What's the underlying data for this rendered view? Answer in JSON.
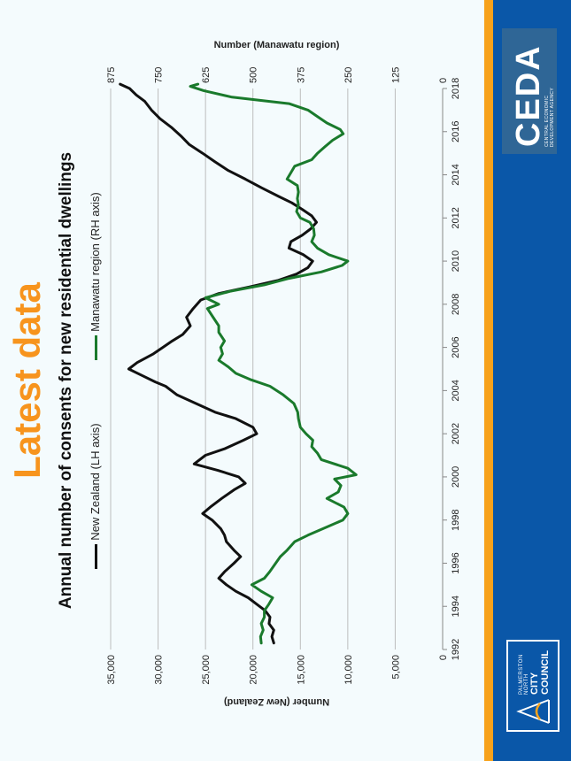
{
  "heading": "Latest data",
  "chart_data": {
    "type": "line",
    "title": "Annual number of consents for new residential dwellings",
    "xlabel": "",
    "ylabel": "Number (New Zealand)",
    "y2label": "Number (Manawatu region)",
    "xlim": [
      1992,
      2018
    ],
    "ylim": [
      0,
      35000
    ],
    "y2lim": [
      0,
      875
    ],
    "x_ticks": [
      "1992",
      "1994",
      "1996",
      "1998",
      "2000",
      "2002",
      "2004",
      "2006",
      "2008",
      "2010",
      "2012",
      "2014",
      "2016",
      "2018"
    ],
    "y_ticks": [
      "0",
      "5,000",
      "10,000",
      "15,000",
      "20,000",
      "25,000",
      "30,000",
      "35,000"
    ],
    "y2_ticks": [
      "0",
      "125",
      "250",
      "375",
      "500",
      "625",
      "750",
      "875"
    ],
    "grid": true,
    "legend_position": "top",
    "series": [
      {
        "name": "New Zealand (LH axis)",
        "axis": "left",
        "color": "#111111",
        "points": [
          [
            1992.3,
            17800
          ],
          [
            1992.6,
            18000
          ],
          [
            1992.9,
            17800
          ],
          [
            1993.2,
            18300
          ],
          [
            1993.5,
            18200
          ],
          [
            1993.8,
            18700
          ],
          [
            1994.1,
            19600
          ],
          [
            1994.4,
            20500
          ],
          [
            1994.7,
            21800
          ],
          [
            1995.0,
            22800
          ],
          [
            1995.3,
            23600
          ],
          [
            1995.6,
            23000
          ],
          [
            1996.0,
            22000
          ],
          [
            1996.3,
            21300
          ],
          [
            1996.6,
            22000
          ],
          [
            1997.0,
            22800
          ],
          [
            1997.3,
            23000
          ],
          [
            1997.6,
            23400
          ],
          [
            1998.0,
            24300
          ],
          [
            1998.3,
            25300
          ],
          [
            1998.6,
            24500
          ],
          [
            1999.0,
            23300
          ],
          [
            1999.4,
            22000
          ],
          [
            1999.7,
            20800
          ],
          [
            2000.0,
            21500
          ],
          [
            2000.3,
            23700
          ],
          [
            2000.6,
            26200
          ],
          [
            2001.0,
            25000
          ],
          [
            2001.3,
            23000
          ],
          [
            2001.7,
            21000
          ],
          [
            2002.0,
            19600
          ],
          [
            2002.3,
            20000
          ],
          [
            2002.7,
            21800
          ],
          [
            2003.0,
            24000
          ],
          [
            2003.4,
            26000
          ],
          [
            2003.8,
            28000
          ],
          [
            2004.2,
            29200
          ],
          [
            2004.4,
            30300
          ],
          [
            2004.7,
            31700
          ],
          [
            2005.0,
            33100
          ],
          [
            2005.3,
            32200
          ],
          [
            2005.7,
            30500
          ],
          [
            2006.0,
            29500
          ],
          [
            2006.3,
            28500
          ],
          [
            2006.6,
            27400
          ],
          [
            2007.0,
            26600
          ],
          [
            2007.4,
            27000
          ],
          [
            2007.8,
            26300
          ],
          [
            2008.2,
            25500
          ],
          [
            2008.5,
            23600
          ],
          [
            2008.8,
            20400
          ],
          [
            2009.1,
            17400
          ],
          [
            2009.4,
            15400
          ],
          [
            2009.7,
            14200
          ],
          [
            2010.0,
            13700
          ],
          [
            2010.3,
            14700
          ],
          [
            2010.6,
            16200
          ],
          [
            2010.9,
            16000
          ],
          [
            2011.2,
            14800
          ],
          [
            2011.5,
            13900
          ],
          [
            2011.8,
            13300
          ],
          [
            2012.1,
            13800
          ],
          [
            2012.4,
            14800
          ],
          [
            2012.7,
            15900
          ],
          [
            2013.0,
            17300
          ],
          [
            2013.4,
            19100
          ],
          [
            2013.8,
            20800
          ],
          [
            2014.2,
            22600
          ],
          [
            2014.6,
            24000
          ],
          [
            2015.0,
            25300
          ],
          [
            2015.4,
            26700
          ],
          [
            2015.8,
            27600
          ],
          [
            2016.2,
            28600
          ],
          [
            2016.6,
            29800
          ],
          [
            2017.0,
            30700
          ],
          [
            2017.4,
            31400
          ],
          [
            2017.7,
            32300
          ],
          [
            2018.0,
            33000
          ],
          [
            2018.2,
            34000
          ]
        ]
      },
      {
        "name": "Manawatu region (RH axis)",
        "axis": "right",
        "color": "#1a7a2c",
        "points": [
          [
            1992.3,
            478
          ],
          [
            1992.6,
            480
          ],
          [
            1992.9,
            473
          ],
          [
            1993.2,
            478
          ],
          [
            1993.5,
            470
          ],
          [
            1993.8,
            470
          ],
          [
            1994.1,
            458
          ],
          [
            1994.4,
            448
          ],
          [
            1994.7,
            478
          ],
          [
            1995.0,
            503
          ],
          [
            1995.3,
            470
          ],
          [
            1995.6,
            456
          ],
          [
            1996.0,
            440
          ],
          [
            1996.3,
            428
          ],
          [
            1996.6,
            410
          ],
          [
            1997.0,
            390
          ],
          [
            1997.3,
            355
          ],
          [
            1997.6,
            315
          ],
          [
            1998.0,
            263
          ],
          [
            1998.3,
            250
          ],
          [
            1998.6,
            260
          ],
          [
            1999.0,
            305
          ],
          [
            1999.3,
            275
          ],
          [
            1999.6,
            268
          ],
          [
            1999.9,
            285
          ],
          [
            2000.1,
            228
          ],
          [
            2000.4,
            250
          ],
          [
            2000.8,
            320
          ],
          [
            2001.1,
            330
          ],
          [
            2001.4,
            345
          ],
          [
            2001.7,
            342
          ],
          [
            2002.0,
            360
          ],
          [
            2002.3,
            375
          ],
          [
            2002.7,
            380
          ],
          [
            2003.0,
            382
          ],
          [
            2003.4,
            392
          ],
          [
            2003.8,
            420
          ],
          [
            2004.2,
            455
          ],
          [
            2004.5,
            505
          ],
          [
            2004.8,
            545
          ],
          [
            2005.1,
            565
          ],
          [
            2005.4,
            590
          ],
          [
            2005.7,
            580
          ],
          [
            2006.0,
            585
          ],
          [
            2006.3,
            575
          ],
          [
            2006.7,
            590
          ],
          [
            2007.0,
            590
          ],
          [
            2007.4,
            605
          ],
          [
            2007.8,
            620
          ],
          [
            2008.0,
            590
          ],
          [
            2008.3,
            625
          ],
          [
            2008.6,
            560
          ],
          [
            2008.9,
            470
          ],
          [
            2009.2,
            405
          ],
          [
            2009.5,
            320
          ],
          [
            2009.8,
            265
          ],
          [
            2010.0,
            250
          ],
          [
            2010.3,
            300
          ],
          [
            2010.6,
            330
          ],
          [
            2010.9,
            345
          ],
          [
            2011.2,
            338
          ],
          [
            2011.5,
            340
          ],
          [
            2011.8,
            350
          ],
          [
            2012.0,
            375
          ],
          [
            2012.3,
            385
          ],
          [
            2012.6,
            380
          ],
          [
            2012.9,
            383
          ],
          [
            2013.2,
            380
          ],
          [
            2013.5,
            383
          ],
          [
            2013.8,
            410
          ],
          [
            2014.1,
            400
          ],
          [
            2014.4,
            390
          ],
          [
            2014.7,
            345
          ],
          [
            2015.0,
            330
          ],
          [
            2015.3,
            310
          ],
          [
            2015.6,
            290
          ],
          [
            2015.9,
            262
          ],
          [
            2016.1,
            270
          ],
          [
            2016.4,
            305
          ],
          [
            2016.7,
            330
          ],
          [
            2017.0,
            355
          ],
          [
            2017.3,
            405
          ],
          [
            2017.6,
            555
          ],
          [
            2017.9,
            630
          ],
          [
            2018.1,
            665
          ],
          [
            2018.2,
            645
          ]
        ]
      }
    ]
  },
  "footer": {
    "pncc_line1": "PALMERSTON NORTH",
    "pncc_line2": "CITY COUNCIL",
    "ceda_name": "CEDA",
    "ceda_line1": "CENTRAL ECONOMIC",
    "ceda_line2": "DEVELOPMENT AGENCY",
    "bar_color": "#0a57a8",
    "stripe_color": "#f7a21b"
  }
}
